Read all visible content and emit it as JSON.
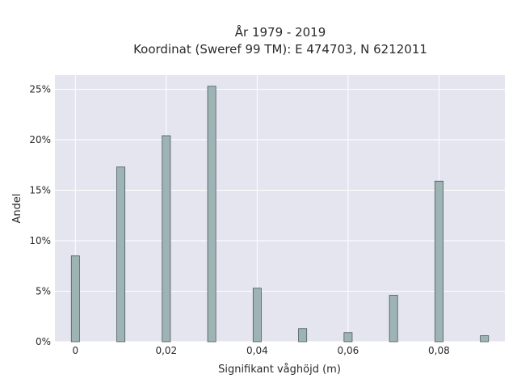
{
  "chart_data": {
    "type": "bar",
    "title_lines": [
      "År 1979 - 2019",
      "Koordinat (Sweref 99 TM): E 474703, N 6212011"
    ],
    "xlabel": "Signifikant våghöjd (m)",
    "ylabel": "Andel",
    "x_ticks": [
      {
        "value": 0,
        "label": "0"
      },
      {
        "value": 0.02,
        "label": "0,02"
      },
      {
        "value": 0.04,
        "label": "0,04"
      },
      {
        "value": 0.06,
        "label": "0,06"
      },
      {
        "value": 0.08,
        "label": "0,08"
      }
    ],
    "y_ticks": [
      {
        "value": 0,
        "label": "0%"
      },
      {
        "value": 5,
        "label": "5%"
      },
      {
        "value": 10,
        "label": "10%"
      },
      {
        "value": 15,
        "label": "15%"
      },
      {
        "value": 20,
        "label": "20%"
      },
      {
        "value": 25,
        "label": "25%"
      }
    ],
    "xlim": [
      -0.0045,
      0.0945
    ],
    "ylim": [
      0,
      26.4
    ],
    "bar_width": 0.0018,
    "x": [
      0,
      0.01,
      0.02,
      0.03,
      0.04,
      0.05,
      0.06,
      0.07,
      0.08,
      0.09
    ],
    "values": [
      8.5,
      17.3,
      20.4,
      25.3,
      5.3,
      1.3,
      0.9,
      4.6,
      15.9,
      0.6
    ],
    "y_unit": "%",
    "grid": true,
    "legend": "none",
    "colors": {
      "plot_background": "#e5e5f0",
      "grid": "#ffffff",
      "bar_fill": "#9db3b4",
      "bar_stroke": "#4a5a5a",
      "text": "#2a2a2a"
    }
  }
}
